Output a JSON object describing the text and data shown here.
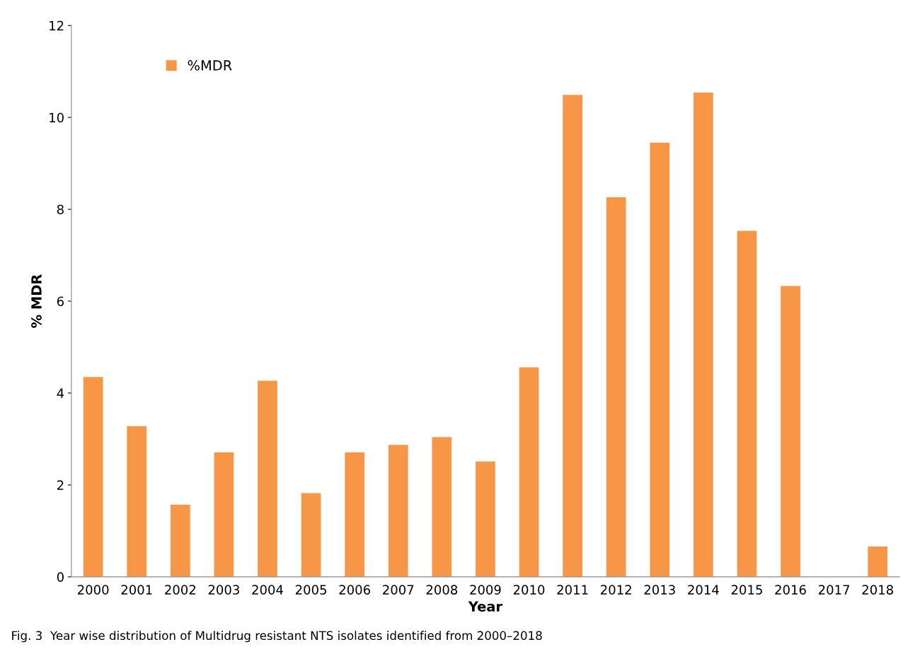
{
  "chart_data": {
    "type": "bar",
    "xlabel": "Year",
    "ylabel": "% MDR",
    "categories": [
      "2000",
      "2001",
      "2002",
      "2003",
      "2004",
      "2005",
      "2006",
      "2007",
      "2008",
      "2009",
      "2010",
      "2011",
      "2012",
      "2013",
      "2014",
      "2015",
      "2016",
      "2017",
      "2018"
    ],
    "series": [
      {
        "name": "%MDR",
        "color": "#f79646",
        "values": [
          4.35,
          3.28,
          1.57,
          2.71,
          4.27,
          1.82,
          2.71,
          2.87,
          3.04,
          2.51,
          4.56,
          10.49,
          8.26,
          9.45,
          10.54,
          7.53,
          6.33,
          0,
          0.66
        ]
      }
    ],
    "ylim": [
      0,
      12
    ],
    "yticks": [
      0,
      2,
      4,
      6,
      8,
      10,
      12
    ],
    "grid": false,
    "legend": "top left",
    "annotations": [
      "Fig. 3  Year wise distribution of Multidrug resistant NTS isolates identified from 2000–2018"
    ]
  }
}
